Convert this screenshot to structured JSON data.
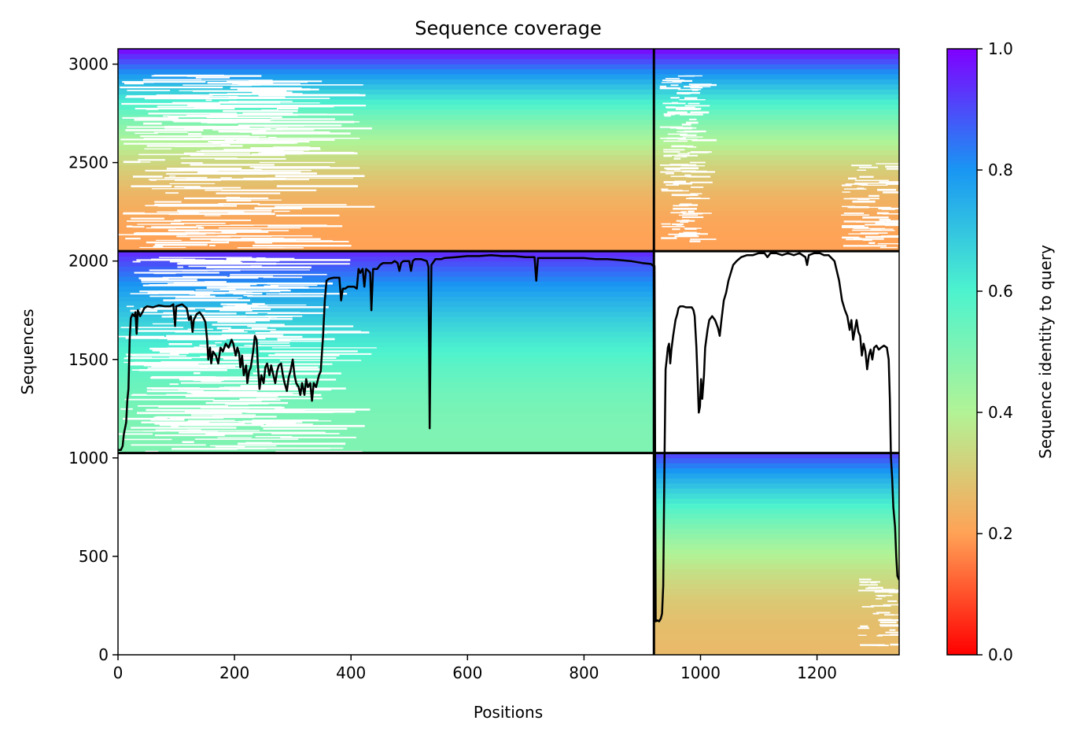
{
  "chart_data": {
    "type": "heatmap",
    "title": "Sequence coverage",
    "xlabel": "Positions",
    "ylabel": "Sequences",
    "xlim": [
      0,
      1341
    ],
    "ylim": [
      0,
      3078
    ],
    "x_ticks": [
      "0",
      "200",
      "400",
      "600",
      "800",
      "1000",
      "1200"
    ],
    "y_ticks": [
      "0",
      "500",
      "1000",
      "1500",
      "2000",
      "2500",
      "3000"
    ],
    "colorbar": {
      "label": "Sequence identity to query",
      "range": [
        0.0,
        1.0
      ],
      "ticks": [
        "0.0",
        "0.2",
        "0.4",
        "0.6",
        "0.8",
        "1.0"
      ],
      "colormap": "rainbow_r",
      "stops": [
        "#ff0000",
        "#ffa256",
        "#b2f396",
        "#4df3ce",
        "#1996f3",
        "#8000ff"
      ]
    },
    "chain_boundaries": {
      "x": [
        920
      ],
      "y": [
        1025,
        2050
      ]
    },
    "blocks": [
      {
        "name": "chain-A-pair",
        "x": [
          0,
          920
        ],
        "y": [
          2050,
          3078
        ],
        "identity_top": 1.0,
        "identity_bottom": 0.2
      },
      {
        "name": "chain-B-pair",
        "x": [
          920,
          1341
        ],
        "y": [
          2050,
          3078
        ],
        "identity_top": 1.0,
        "identity_bottom": 0.2
      },
      {
        "name": "chain-A-unpaired",
        "x": [
          0,
          920
        ],
        "y": [
          1025,
          2050
        ],
        "identity_top": 0.95,
        "identity_bottom": 0.5
      },
      {
        "name": "chain-B-unpaired",
        "x": [
          920,
          1341
        ],
        "y": [
          0,
          1025
        ],
        "identity_top": 0.92,
        "identity_bottom": 0.26
      }
    ],
    "coverage_line": {
      "color": "#000000",
      "points": [
        [
          0,
          1040
        ],
        [
          5,
          1040
        ],
        [
          8,
          1060
        ],
        [
          10,
          1120
        ],
        [
          14,
          1180
        ],
        [
          16,
          1290
        ],
        [
          18,
          1350
        ],
        [
          20,
          1600
        ],
        [
          22,
          1710
        ],
        [
          25,
          1730
        ],
        [
          28,
          1720
        ],
        [
          30,
          1740
        ],
        [
          32,
          1630
        ],
        [
          34,
          1750
        ],
        [
          38,
          1720
        ],
        [
          42,
          1740
        ],
        [
          45,
          1760
        ],
        [
          50,
          1770
        ],
        [
          60,
          1765
        ],
        [
          70,
          1775
        ],
        [
          80,
          1770
        ],
        [
          90,
          1770
        ],
        [
          95,
          1780
        ],
        [
          98,
          1670
        ],
        [
          100,
          1770
        ],
        [
          110,
          1780
        ],
        [
          118,
          1760
        ],
        [
          122,
          1700
        ],
        [
          125,
          1720
        ],
        [
          128,
          1640
        ],
        [
          130,
          1700
        ],
        [
          135,
          1730
        ],
        [
          140,
          1740
        ],
        [
          145,
          1720
        ],
        [
          150,
          1690
        ],
        [
          153,
          1600
        ],
        [
          155,
          1500
        ],
        [
          158,
          1560
        ],
        [
          160,
          1480
        ],
        [
          163,
          1540
        ],
        [
          168,
          1520
        ],
        [
          172,
          1480
        ],
        [
          176,
          1560
        ],
        [
          180,
          1540
        ],
        [
          185,
          1580
        ],
        [
          190,
          1560
        ],
        [
          195,
          1600
        ],
        [
          198,
          1580
        ],
        [
          202,
          1520
        ],
        [
          205,
          1560
        ],
        [
          208,
          1530
        ],
        [
          210,
          1460
        ],
        [
          213,
          1520
        ],
        [
          216,
          1420
        ],
        [
          220,
          1470
        ],
        [
          222,
          1380
        ],
        [
          225,
          1440
        ],
        [
          228,
          1460
        ],
        [
          232,
          1540
        ],
        [
          235,
          1620
        ],
        [
          238,
          1600
        ],
        [
          240,
          1480
        ],
        [
          243,
          1350
        ],
        [
          246,
          1420
        ],
        [
          250,
          1380
        ],
        [
          253,
          1460
        ],
        [
          256,
          1480
        ],
        [
          260,
          1420
        ],
        [
          263,
          1470
        ],
        [
          266,
          1430
        ],
        [
          270,
          1380
        ],
        [
          273,
          1440
        ],
        [
          276,
          1470
        ],
        [
          280,
          1480
        ],
        [
          283,
          1420
        ],
        [
          286,
          1380
        ],
        [
          290,
          1340
        ],
        [
          293,
          1410
        ],
        [
          296,
          1440
        ],
        [
          300,
          1500
        ],
        [
          303,
          1420
        ],
        [
          306,
          1380
        ],
        [
          310,
          1360
        ],
        [
          313,
          1320
        ],
        [
          316,
          1380
        ],
        [
          320,
          1320
        ],
        [
          323,
          1400
        ],
        [
          326,
          1360
        ],
        [
          330,
          1380
        ],
        [
          333,
          1290
        ],
        [
          336,
          1380
        ],
        [
          340,
          1360
        ],
        [
          345,
          1420
        ],
        [
          348,
          1440
        ],
        [
          352,
          1620
        ],
        [
          355,
          1800
        ],
        [
          358,
          1900
        ],
        [
          362,
          1910
        ],
        [
          370,
          1915
        ],
        [
          380,
          1915
        ],
        [
          383,
          1800
        ],
        [
          386,
          1860
        ],
        [
          390,
          1860
        ],
        [
          395,
          1870
        ],
        [
          400,
          1870
        ],
        [
          405,
          1870
        ],
        [
          410,
          1860
        ],
        [
          413,
          1960
        ],
        [
          416,
          1940
        ],
        [
          420,
          1960
        ],
        [
          423,
          1870
        ],
        [
          426,
          1960
        ],
        [
          430,
          1950
        ],
        [
          433,
          1940
        ],
        [
          435,
          1750
        ],
        [
          438,
          1960
        ],
        [
          445,
          1960
        ],
        [
          450,
          1980
        ],
        [
          455,
          1990
        ],
        [
          460,
          1990
        ],
        [
          465,
          1990
        ],
        [
          470,
          1990
        ],
        [
          475,
          2000
        ],
        [
          480,
          1990
        ],
        [
          483,
          1950
        ],
        [
          486,
          1990
        ],
        [
          490,
          2000
        ],
        [
          500,
          2000
        ],
        [
          503,
          1950
        ],
        [
          506,
          2000
        ],
        [
          510,
          2010
        ],
        [
          520,
          2010
        ],
        [
          530,
          2000
        ],
        [
          533,
          1970
        ],
        [
          535,
          1150
        ],
        [
          538,
          1980
        ],
        [
          545,
          2010
        ],
        [
          555,
          2010
        ],
        [
          560,
          2015
        ],
        [
          580,
          2020
        ],
        [
          600,
          2025
        ],
        [
          620,
          2025
        ],
        [
          640,
          2030
        ],
        [
          660,
          2025
        ],
        [
          680,
          2025
        ],
        [
          700,
          2020
        ],
        [
          715,
          2020
        ],
        [
          718,
          1900
        ],
        [
          721,
          2015
        ],
        [
          740,
          2015
        ],
        [
          760,
          2015
        ],
        [
          780,
          2015
        ],
        [
          800,
          2015
        ],
        [
          820,
          2010
        ],
        [
          840,
          2010
        ],
        [
          860,
          2005
        ],
        [
          880,
          2000
        ],
        [
          900,
          1990
        ],
        [
          915,
          1985
        ],
        [
          919,
          1975
        ],
        [
          921,
          1975
        ],
        [
          923,
          170
        ],
        [
          926,
          175
        ],
        [
          929,
          170
        ],
        [
          932,
          185
        ],
        [
          934,
          210
        ],
        [
          936,
          350
        ],
        [
          938,
          950
        ],
        [
          940,
          1450
        ],
        [
          942,
          1500
        ],
        [
          944,
          1560
        ],
        [
          946,
          1580
        ],
        [
          948,
          1480
        ],
        [
          950,
          1550
        ],
        [
          953,
          1620
        ],
        [
          955,
          1660
        ],
        [
          957,
          1700
        ],
        [
          960,
          1730
        ],
        [
          962,
          1760
        ],
        [
          965,
          1770
        ],
        [
          970,
          1770
        ],
        [
          975,
          1765
        ],
        [
          985,
          1765
        ],
        [
          988,
          1750
        ],
        [
          990,
          1720
        ],
        [
          993,
          1560
        ],
        [
          995,
          1400
        ],
        [
          997,
          1230
        ],
        [
          999,
          1260
        ],
        [
          1001,
          1400
        ],
        [
          1003,
          1300
        ],
        [
          1006,
          1420
        ],
        [
          1008,
          1560
        ],
        [
          1012,
          1650
        ],
        [
          1015,
          1700
        ],
        [
          1020,
          1720
        ],
        [
          1025,
          1700
        ],
        [
          1030,
          1660
        ],
        [
          1033,
          1620
        ],
        [
          1036,
          1700
        ],
        [
          1040,
          1800
        ],
        [
          1044,
          1840
        ],
        [
          1048,
          1900
        ],
        [
          1052,
          1940
        ],
        [
          1056,
          1980
        ],
        [
          1062,
          2000
        ],
        [
          1070,
          2020
        ],
        [
          1080,
          2030
        ],
        [
          1090,
          2030
        ],
        [
          1100,
          2040
        ],
        [
          1110,
          2040
        ],
        [
          1115,
          2020
        ],
        [
          1120,
          2040
        ],
        [
          1130,
          2040
        ],
        [
          1140,
          2030
        ],
        [
          1150,
          2040
        ],
        [
          1160,
          2030
        ],
        [
          1170,
          2040
        ],
        [
          1180,
          2020
        ],
        [
          1183,
          1980
        ],
        [
          1186,
          2030
        ],
        [
          1195,
          2040
        ],
        [
          1205,
          2040
        ],
        [
          1212,
          2030
        ],
        [
          1220,
          2030
        ],
        [
          1230,
          2000
        ],
        [
          1238,
          1900
        ],
        [
          1243,
          1800
        ],
        [
          1248,
          1750
        ],
        [
          1252,
          1720
        ],
        [
          1256,
          1650
        ],
        [
          1259,
          1700
        ],
        [
          1262,
          1600
        ],
        [
          1265,
          1650
        ],
        [
          1268,
          1700
        ],
        [
          1271,
          1640
        ],
        [
          1274,
          1620
        ],
        [
          1277,
          1520
        ],
        [
          1280,
          1580
        ],
        [
          1283,
          1540
        ],
        [
          1286,
          1450
        ],
        [
          1289,
          1520
        ],
        [
          1292,
          1550
        ],
        [
          1295,
          1500
        ],
        [
          1298,
          1560
        ],
        [
          1302,
          1570
        ],
        [
          1306,
          1550
        ],
        [
          1310,
          1560
        ],
        [
          1315,
          1570
        ],
        [
          1320,
          1560
        ],
        [
          1323,
          1500
        ],
        [
          1325,
          1300
        ],
        [
          1327,
          1000
        ],
        [
          1329,
          900
        ],
        [
          1331,
          750
        ],
        [
          1334,
          650
        ],
        [
          1336,
          500
        ],
        [
          1338,
          400
        ],
        [
          1341,
          380
        ]
      ]
    }
  }
}
